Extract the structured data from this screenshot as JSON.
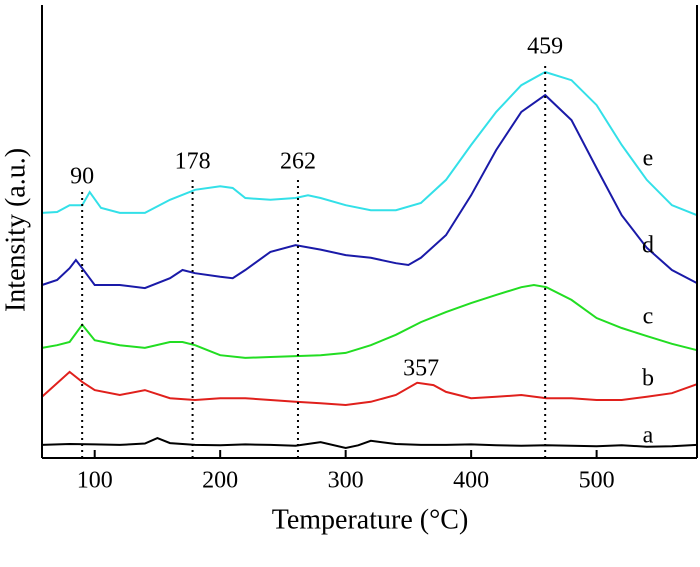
{
  "chart_data": {
    "type": "line",
    "x_label": "Temperature (°C)",
    "y_label": "Intensity (a.u.)",
    "xlim": [
      58,
      580
    ],
    "ylim": [
      0,
      100
    ],
    "xticks": [
      100,
      200,
      300,
      400,
      500
    ],
    "series": [
      {
        "name": "a",
        "color": "#000000",
        "x": [
          58,
          80,
          100,
          120,
          140,
          150,
          160,
          180,
          200,
          220,
          240,
          260,
          280,
          300,
          310,
          320,
          340,
          360,
          380,
          400,
          420,
          440,
          460,
          480,
          500,
          520,
          540,
          560,
          580
        ],
        "values": [
          2.9,
          3.1,
          3.0,
          2.9,
          3.2,
          4.4,
          3.3,
          2.9,
          2.8,
          3.0,
          2.9,
          2.7,
          3.5,
          2.2,
          2.8,
          3.8,
          3.1,
          2.9,
          2.9,
          3.0,
          2.8,
          2.7,
          2.8,
          2.7,
          2.6,
          2.8,
          2.5,
          2.6,
          2.9
        ]
      },
      {
        "name": "b",
        "color": "#e0201c",
        "x": [
          58,
          80,
          90,
          100,
          120,
          140,
          160,
          180,
          200,
          220,
          240,
          260,
          280,
          300,
          320,
          340,
          357,
          370,
          380,
          400,
          420,
          440,
          460,
          480,
          500,
          520,
          540,
          560,
          580
        ],
        "values": [
          13.5,
          19.0,
          16.8,
          15.0,
          13.9,
          15.0,
          13.2,
          12.8,
          13.2,
          13.2,
          12.8,
          12.4,
          12.1,
          11.7,
          12.4,
          13.9,
          16.6,
          16.1,
          14.6,
          13.2,
          13.5,
          13.9,
          13.2,
          13.2,
          12.8,
          12.8,
          13.5,
          14.3,
          16.3
        ]
      },
      {
        "name": "c",
        "color": "#22dd22",
        "x": [
          58,
          70,
          80,
          90,
          100,
          120,
          140,
          160,
          170,
          180,
          190,
          200,
          220,
          240,
          260,
          280,
          300,
          320,
          340,
          360,
          380,
          400,
          420,
          440,
          450,
          460,
          480,
          500,
          520,
          540,
          560,
          580
        ],
        "values": [
          24.3,
          24.9,
          25.6,
          29.4,
          26.0,
          24.9,
          24.3,
          25.6,
          25.6,
          24.9,
          23.8,
          22.7,
          22.1,
          22.3,
          22.5,
          22.7,
          23.2,
          24.9,
          27.2,
          30.0,
          32.2,
          34.2,
          36.0,
          37.7,
          38.2,
          37.7,
          34.9,
          30.9,
          28.7,
          26.9,
          25.2,
          23.8
        ]
      },
      {
        "name": "d",
        "color": "#1a1aa8",
        "x": [
          58,
          70,
          80,
          85,
          90,
          100,
          120,
          140,
          160,
          170,
          180,
          200,
          210,
          220,
          240,
          260,
          280,
          300,
          320,
          340,
          350,
          360,
          380,
          400,
          420,
          440,
          459,
          480,
          500,
          520,
          540,
          560,
          580
        ],
        "values": [
          38.2,
          39.3,
          41.9,
          43.7,
          41.9,
          38.2,
          38.2,
          37.5,
          39.7,
          41.5,
          40.8,
          40.0,
          39.7,
          41.5,
          45.5,
          47.0,
          46.0,
          44.8,
          44.2,
          43.0,
          42.6,
          44.2,
          49.2,
          58.0,
          68.0,
          76.4,
          80.1,
          74.6,
          64.0,
          53.6,
          46.4,
          41.5,
          38.6
        ]
      },
      {
        "name": "e",
        "color": "#33e0e8",
        "x": [
          58,
          70,
          80,
          90,
          96,
          105,
          120,
          140,
          160,
          180,
          200,
          210,
          220,
          240,
          260,
          270,
          280,
          300,
          320,
          340,
          360,
          380,
          400,
          420,
          440,
          459,
          480,
          500,
          520,
          540,
          560,
          580
        ],
        "values": [
          54.1,
          54.3,
          55.8,
          55.8,
          58.7,
          55.2,
          54.1,
          54.1,
          57.0,
          59.2,
          60.0,
          59.6,
          57.4,
          57.0,
          57.4,
          58.0,
          57.4,
          55.8,
          54.7,
          54.7,
          56.3,
          61.4,
          69.1,
          76.4,
          82.3,
          85.2,
          83.4,
          77.9,
          69.1,
          61.4,
          55.8,
          53.6
        ]
      }
    ],
    "annotations": [
      {
        "x": 90,
        "dotted_line": true
      },
      {
        "x": 178,
        "dotted_line": true
      },
      {
        "x": 262,
        "dotted_line": true
      },
      {
        "x": 357,
        "dotted_line": false
      },
      {
        "x": 459,
        "dotted_line": true
      }
    ]
  }
}
